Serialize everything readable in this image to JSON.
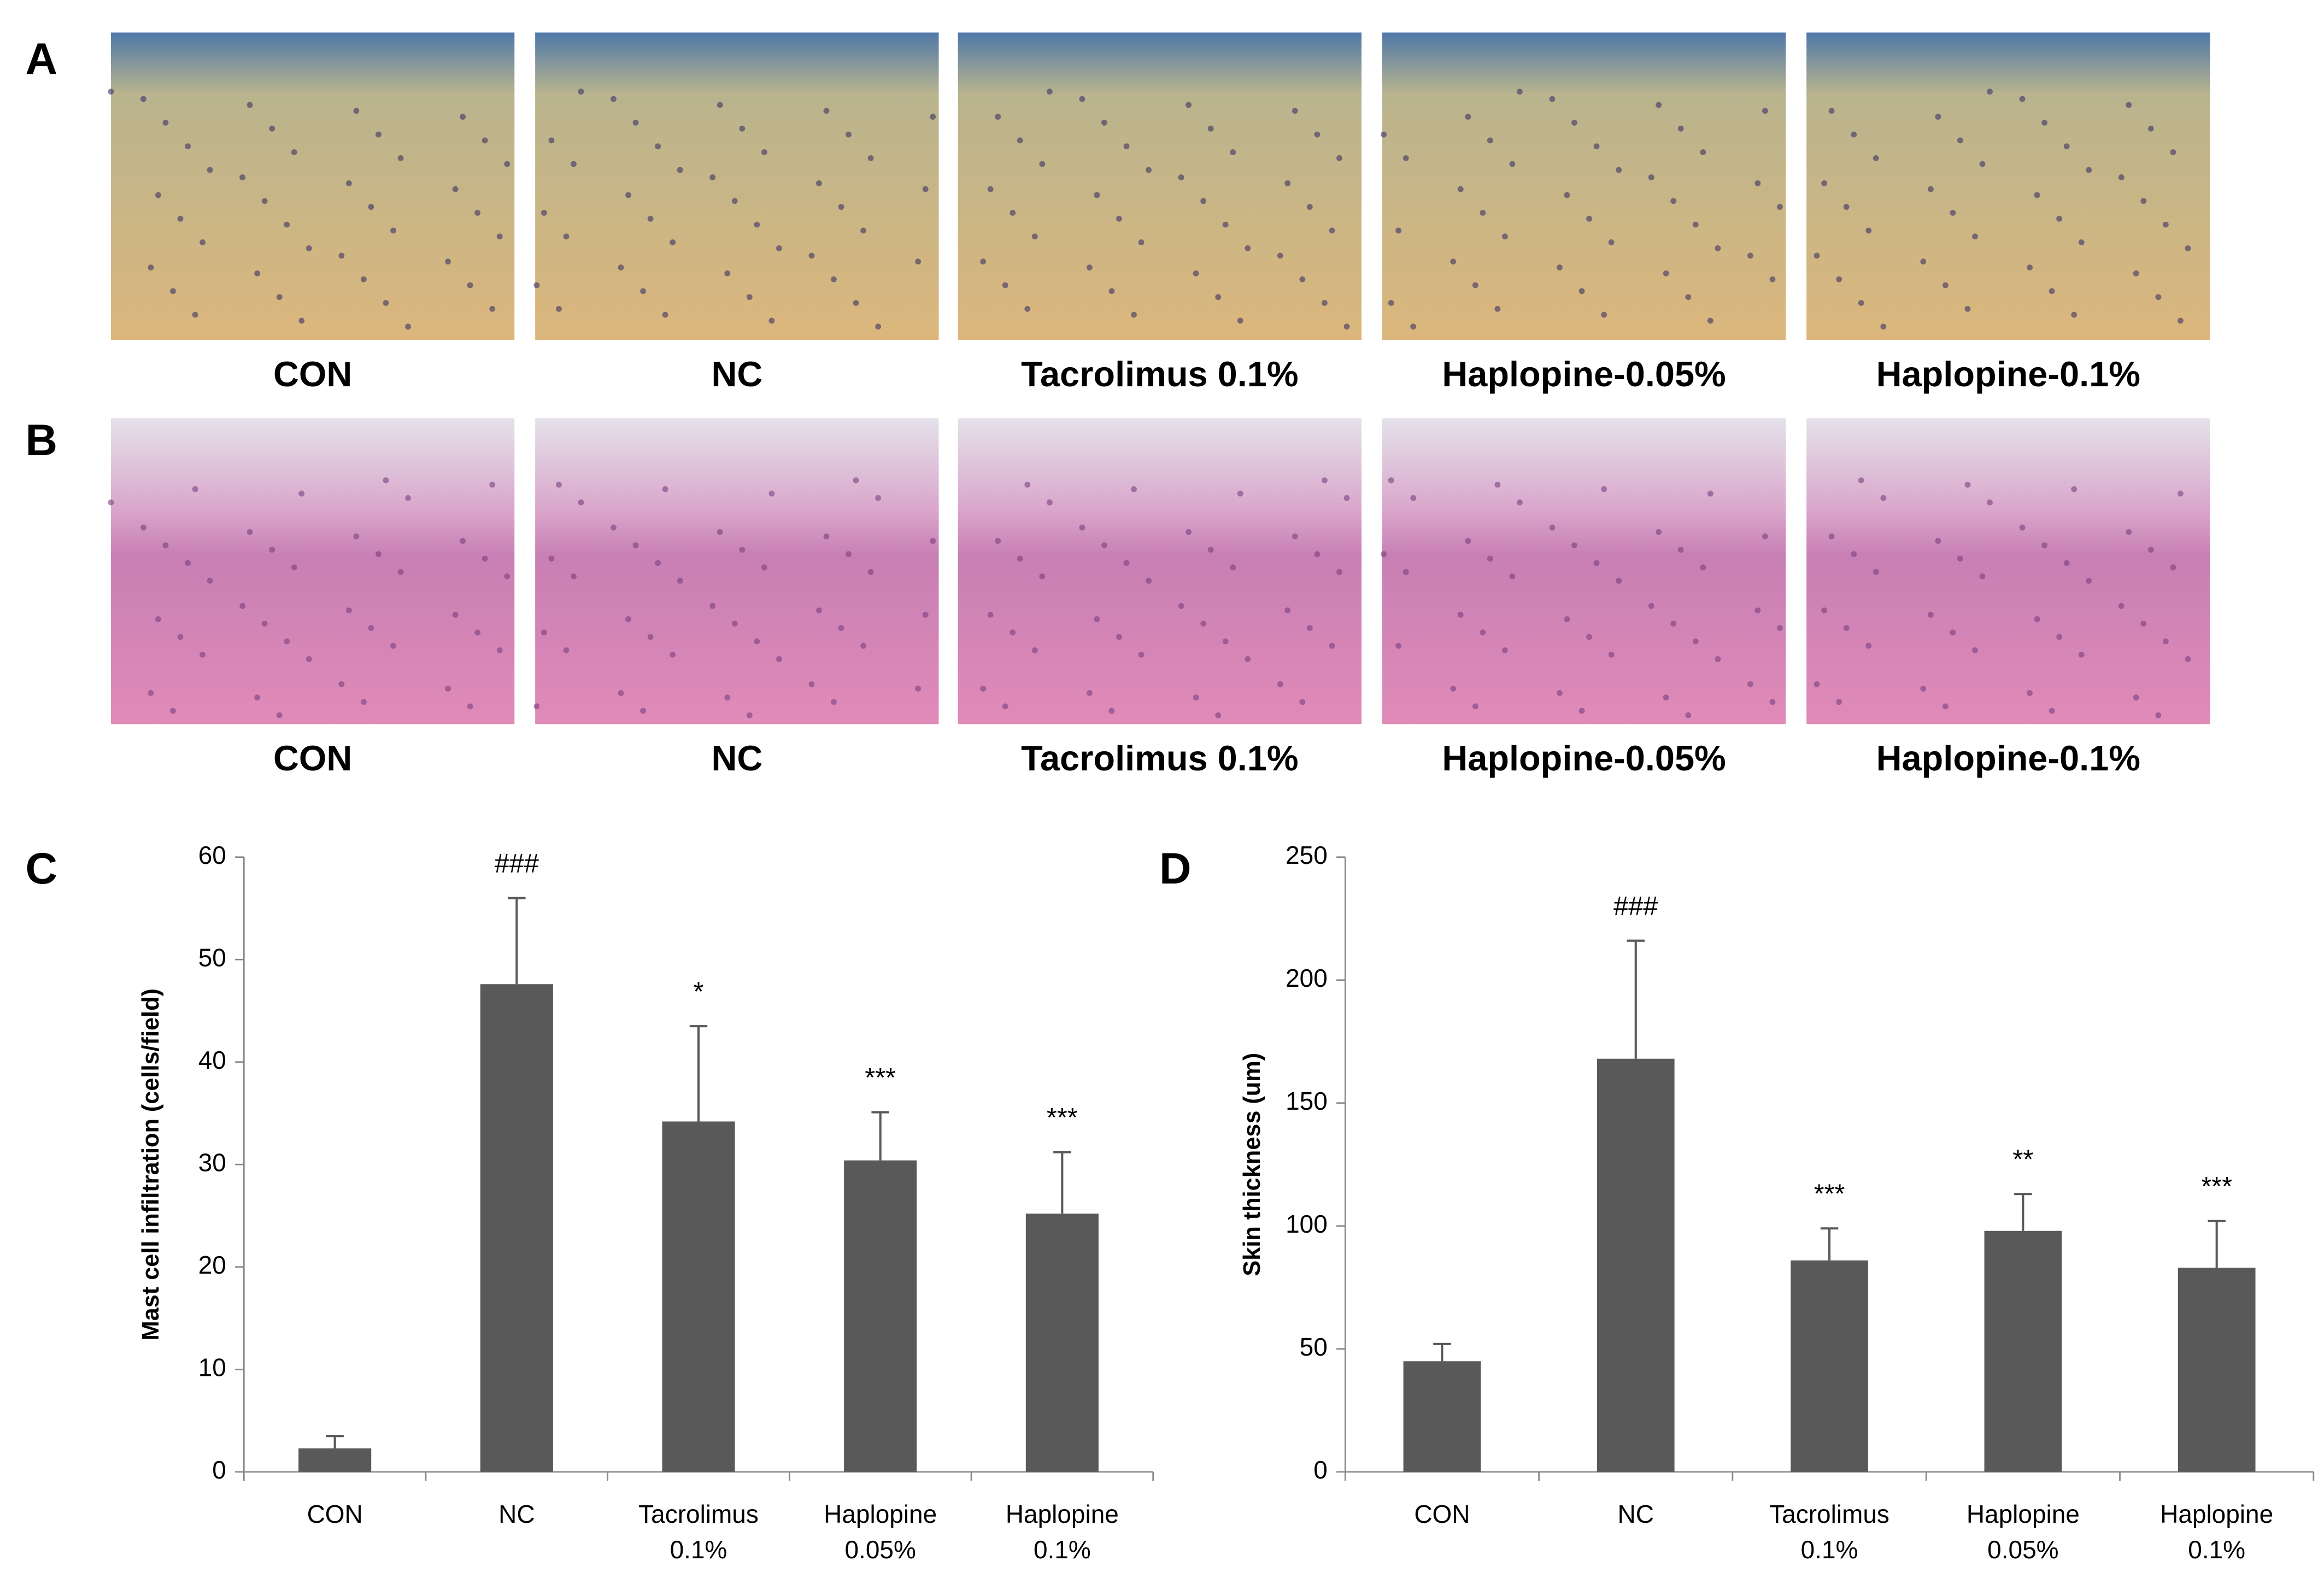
{
  "panel_labels": [
    "A",
    "B",
    "C",
    "D"
  ],
  "image_rows": [
    {
      "captions": [
        "CON",
        "NC",
        "Tacrolimus 0.1%",
        "Haplopine-0.05%",
        "Haplopine-0.1%"
      ]
    },
    {
      "captions": [
        "CON",
        "NC",
        "Tacrolimus 0.1%",
        "Haplopine-0.05%",
        "Haplopine-0.1%"
      ]
    }
  ],
  "chart_data": [
    {
      "type": "bar",
      "y_label": "Mast cell infiltration (cells/field)",
      "categories": [
        [
          "CON"
        ],
        [
          "NC"
        ],
        [
          "Tacrolimus",
          "0.1%"
        ],
        [
          "Haplopine",
          "0.05%"
        ],
        [
          "Haplopine",
          "0.1%"
        ]
      ],
      "values": [
        2.3,
        47.6,
        34.2,
        30.4,
        25.2
      ],
      "errors": [
        1.2,
        8.4,
        9.3,
        4.7,
        6.0
      ],
      "annotations": [
        null,
        "###",
        "*",
        "***",
        "***"
      ],
      "color": "#595959",
      "ylim": [
        0,
        60
      ],
      "yticks": [
        0,
        10,
        20,
        30,
        40,
        50,
        60
      ]
    },
    {
      "type": "bar",
      "y_label": "Skin thickness (um)",
      "categories": [
        [
          "CON"
        ],
        [
          "NC"
        ],
        [
          "Tacrolimus",
          "0.1%"
        ],
        [
          "Haplopine",
          "0.05%"
        ],
        [
          "Haplopine",
          "0.1%"
        ]
      ],
      "values": [
        45,
        168,
        86,
        98,
        83
      ],
      "errors": [
        7,
        48,
        13,
        15,
        19
      ],
      "annotations": [
        null,
        "###",
        "***",
        "**",
        "***"
      ],
      "color": "#595959",
      "ylim": [
        0,
        250
      ],
      "yticks": [
        0,
        50,
        100,
        150,
        200,
        250
      ]
    }
  ]
}
